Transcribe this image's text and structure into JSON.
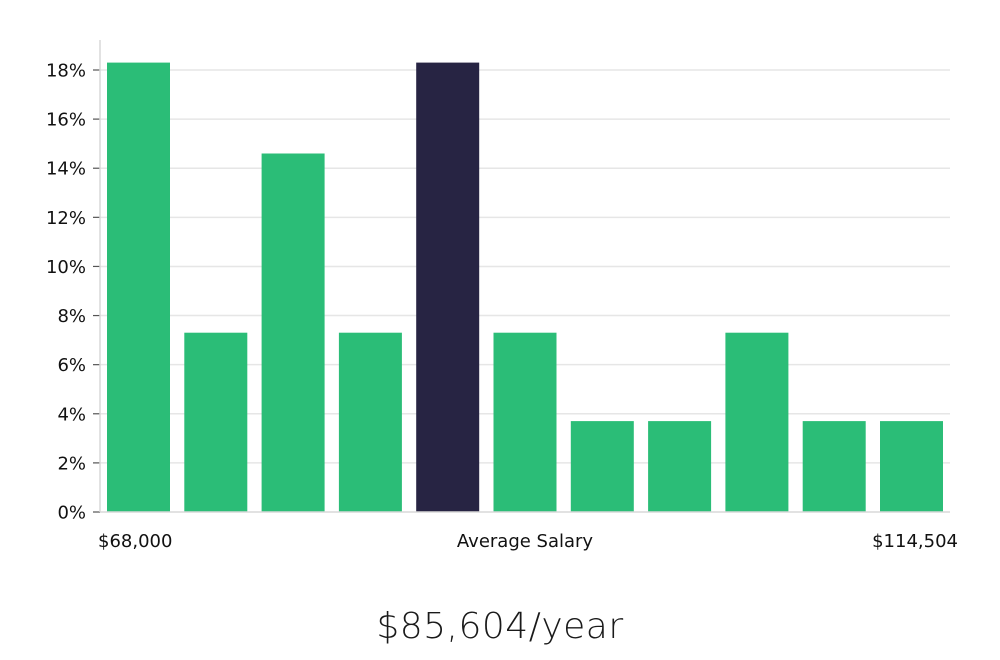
{
  "chart_data": {
    "type": "bar",
    "title": "",
    "xlabel": "",
    "ylabel": "",
    "ylim": [
      0,
      18
    ],
    "yticks": [
      0,
      2,
      4,
      6,
      8,
      10,
      12,
      14,
      16,
      18
    ],
    "ytick_suffix": "%",
    "grid": true,
    "values": [
      18.3,
      7.3,
      14.6,
      7.3,
      18.3,
      7.3,
      3.7,
      3.7,
      7.3,
      3.7,
      3.7
    ],
    "highlight_index": 4,
    "bar_color": "#2bbd77",
    "highlight_color": "#272443",
    "x_labels": {
      "min": "$68,000",
      "center": "Average Salary",
      "max": "$114,504"
    }
  },
  "salary_caption": "$85,604/year"
}
